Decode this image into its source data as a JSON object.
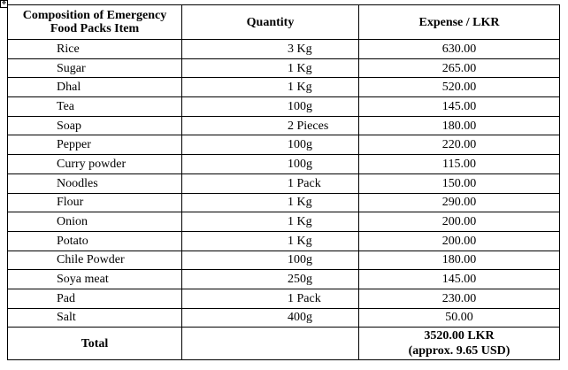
{
  "table": {
    "headers": {
      "item_line1": "Composition of Emergency",
      "item_line2": "Food Packs Item",
      "quantity": "Quantity",
      "expense": "Expense / LKR"
    },
    "rows": [
      {
        "item": "Rice",
        "quantity": "3 Kg",
        "expense": "630.00"
      },
      {
        "item": "Sugar",
        "quantity": "1 Kg",
        "expense": "265.00"
      },
      {
        "item": "Dhal",
        "quantity": "1 Kg",
        "expense": "520.00"
      },
      {
        "item": "Tea",
        "quantity": "100g",
        "expense": "145.00"
      },
      {
        "item": "Soap",
        "quantity": "2 Pieces",
        "expense": "180.00"
      },
      {
        "item": "Pepper",
        "quantity": "100g",
        "expense": "220.00"
      },
      {
        "item": "Curry powder",
        "quantity": "100g",
        "expense": "115.00"
      },
      {
        "item": "Noodles",
        "quantity": "1 Pack",
        "expense": "150.00"
      },
      {
        "item": "Flour",
        "quantity": "1 Kg",
        "expense": "290.00"
      },
      {
        "item": "Onion",
        "quantity": "1 Kg",
        "expense": "200.00"
      },
      {
        "item": "Potato",
        "quantity": "1 Kg",
        "expense": "200.00"
      },
      {
        "item": "Chile Powder",
        "quantity": "100g",
        "expense": "180.00"
      },
      {
        "item": "Soya meat",
        "quantity": "250g",
        "expense": "145.00"
      },
      {
        "item": "Pad",
        "quantity": "1 Pack",
        "expense": "230.00"
      },
      {
        "item": "Salt",
        "quantity": "400g",
        "expense": "50.00"
      }
    ],
    "total": {
      "label": "Total",
      "amount": "3520.00 LKR",
      "usd": "(approx. 9.65 USD)"
    }
  },
  "icons": {
    "anchor": "table-move-handle-icon"
  }
}
